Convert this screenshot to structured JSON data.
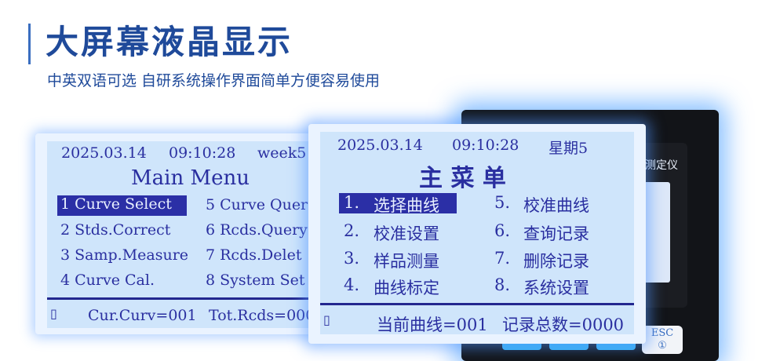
{
  "header": {
    "title": "大屏幕液晶显示",
    "subtitle": "中英双语可选 自研系统操作界面简单方便容易使用"
  },
  "device": {
    "label": "测定仪",
    "esc_label": "ESC",
    "esc_sub": "①"
  },
  "english_screen": {
    "date": "2025.03.14",
    "time": "09:10:28",
    "weekday": "week5",
    "title": "Main Menu",
    "items": [
      "1 Curve Select",
      "2 Stds.Correct",
      "3 Samp.Measure",
      "4 Curve Cal.",
      "5 Curve Quer",
      "6 Rcds.Query",
      "7 Rcds.Delet",
      "8 System Set"
    ],
    "selected": "1 Curve Select",
    "footer_curve": "Cur.Curv=001",
    "footer_records": "Tot.Rcds=000"
  },
  "chinese_screen": {
    "date": "2025.03.14",
    "time": "09:10:28",
    "weekday": "星期5",
    "title": "主 菜 单",
    "items": [
      {
        "num": "1.",
        "label": "选择曲线"
      },
      {
        "num": "2.",
        "label": "校准设置"
      },
      {
        "num": "3.",
        "label": "样品测量"
      },
      {
        "num": "4.",
        "label": "曲线标定"
      },
      {
        "num": "5.",
        "label": "校准曲线"
      },
      {
        "num": "6.",
        "label": "查询记录"
      },
      {
        "num": "7.",
        "label": "删除记录"
      },
      {
        "num": "8.",
        "label": "系统设置"
      }
    ],
    "footer_curve": "当前曲线=001",
    "footer_records": "记录总数=0000"
  },
  "colors": {
    "brand": "#1f4a9a",
    "lcd_bg": "#cfe5fb",
    "lcd_text": "#2a2fa0",
    "highlight": "#2b2fa6"
  }
}
